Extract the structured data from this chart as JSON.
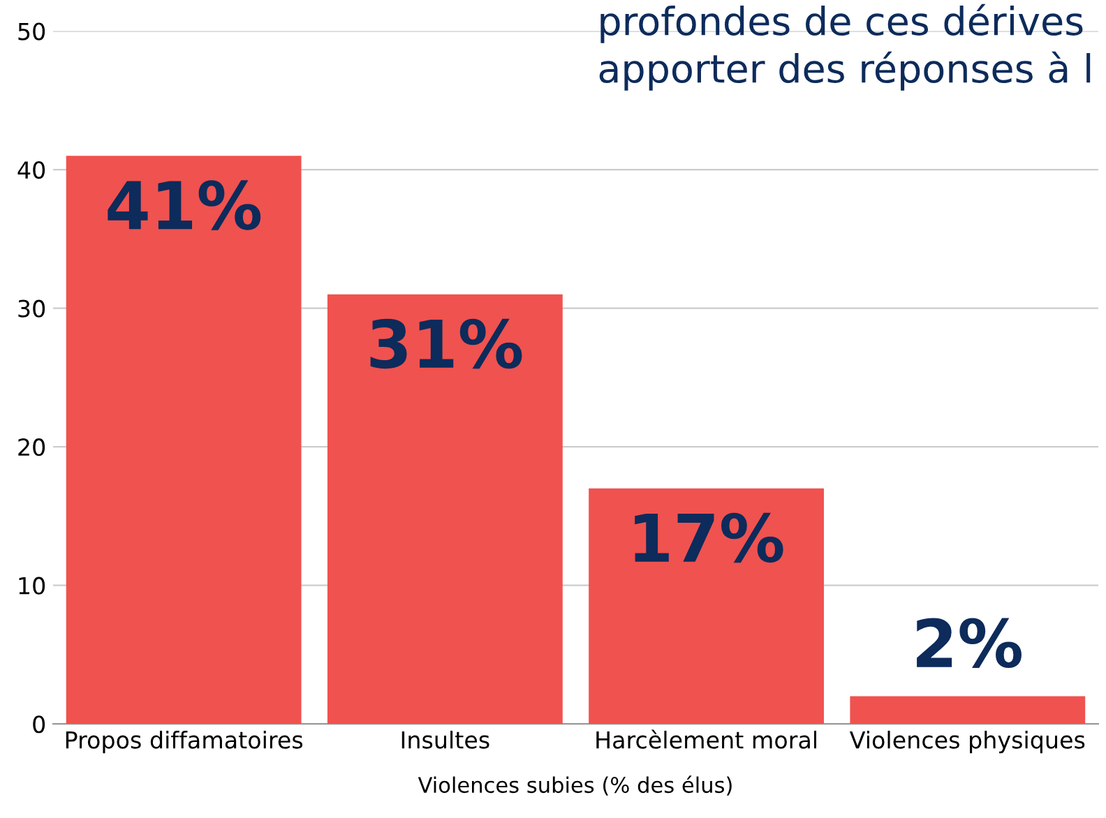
{
  "chart_data": {
    "type": "bar",
    "xlabel": "Violences subies (% des élus)",
    "annotations": [
      "profondes de ces dérives",
      "apporter des réponses à l"
    ],
    "categories": [
      "Propos diffamatoires",
      "Insultes",
      "Harcèlement moral",
      "Violences physiques"
    ],
    "values": [
      41,
      31,
      17,
      2
    ],
    "value_labels": [
      "41%",
      "31%",
      "17%",
      "2%"
    ],
    "color": "#f0524f",
    "ylim": [
      0,
      50
    ],
    "yticks": [
      0,
      10,
      20,
      30,
      40,
      50
    ],
    "grid": "y",
    "legend": false
  }
}
